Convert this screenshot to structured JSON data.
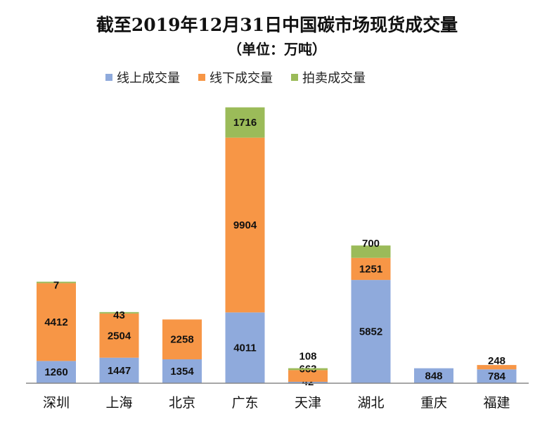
{
  "chart_data": {
    "type": "bar",
    "stacked": true,
    "title": "截至2019年12月31日中国碳市场现货成交量",
    "subtitle": "（单位：万吨）",
    "xlabel": "",
    "ylabel": "",
    "ylim": [
      0,
      16000
    ],
    "grid": false,
    "legend_position": "top",
    "categories": [
      "深圳",
      "上海",
      "北京",
      "广东",
      "天津",
      "湖北",
      "重庆",
      "福建"
    ],
    "series": [
      {
        "name": "线上成交量",
        "color": "#8FAADC",
        "values": [
          1260,
          1447,
          1354,
          4011,
          42,
          5852,
          848,
          784
        ]
      },
      {
        "name": "线下成交量",
        "color": "#F79646",
        "values": [
          4412,
          2504,
          2258,
          9904,
          663,
          1251,
          null,
          248
        ]
      },
      {
        "name": "拍卖成交量",
        "color": "#9BBB59",
        "values": [
          7,
          43,
          null,
          1716,
          108,
          700,
          null,
          null
        ]
      }
    ]
  }
}
